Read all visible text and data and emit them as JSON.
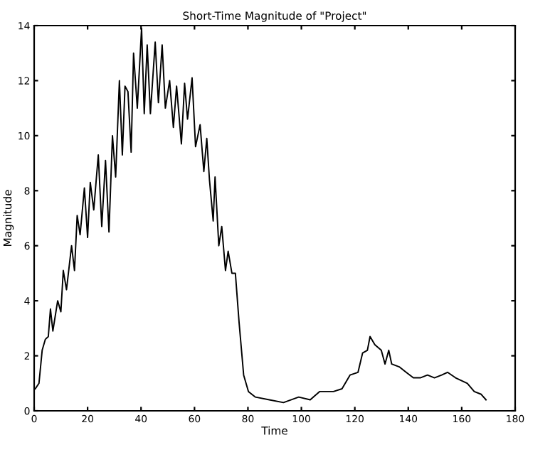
{
  "chart_data": {
    "type": "line",
    "title": "Short-Time Magnitude of \"Project\"",
    "xlabel": "Time",
    "ylabel": "Magnitude",
    "x": [
      0.4,
      1.8,
      3,
      4.2,
      5.3,
      6.1,
      7,
      8.8,
      10,
      10.9,
      12.1,
      14,
      15.1,
      16.1,
      17.2,
      18.8,
      20,
      21,
      22.3,
      24,
      25.3,
      26.7,
      28,
      29.3,
      30.5,
      31.9,
      33,
      34,
      35.1,
      36.3,
      37.2,
      38.6,
      40.2,
      41.2,
      42.3,
      43.5,
      45.3,
      46.5,
      47.9,
      49.1,
      50.7,
      52.1,
      53.3,
      55.1,
      56.3,
      57.4,
      59.1,
      60.4,
      62.1,
      63.5,
      64.6,
      65.6,
      67,
      67.7,
      69.1,
      70.2,
      71.6,
      72.6,
      74,
      75.3,
      76.7,
      78.4,
      80.2,
      82.8,
      88,
      93.3,
      99,
      103.3,
      106.8,
      112,
      115.2,
      118.2,
      121.2,
      122.9,
      124.7,
      125.7,
      127.5,
      129.9,
      131.3,
      132.7,
      133.8,
      136.6,
      139.2,
      141.9,
      144.5,
      147.2,
      149.8,
      152.5,
      154.7,
      157.7,
      162.1,
      164.7,
      167.3,
      169.1
    ],
    "series": [
      {
        "color": "#000000",
        "values": [
          0.8,
          1.0,
          2.2,
          2.6,
          2.7,
          3.7,
          2.9,
          4.0,
          3.6,
          5.1,
          4.4,
          6.0,
          5.1,
          7.1,
          6.4,
          8.1,
          6.3,
          8.3,
          7.3,
          9.3,
          6.7,
          9.1,
          6.5,
          10.0,
          8.5,
          12.0,
          9.3,
          11.8,
          11.6,
          9.4,
          13.0,
          11.0,
          13.9,
          10.8,
          13.3,
          10.8,
          13.4,
          11.2,
          13.3,
          11.0,
          12.0,
          10.3,
          11.8,
          9.7,
          11.9,
          10.6,
          12.1,
          9.6,
          10.4,
          8.7,
          9.9,
          8.4,
          6.9,
          8.5,
          6.0,
          6.7,
          5.1,
          5.8,
          5.0,
          5.0,
          3.2,
          1.3,
          0.7,
          0.5,
          0.4,
          0.3,
          0.5,
          0.4,
          0.7,
          0.7,
          0.8,
          1.3,
          1.4,
          2.1,
          2.2,
          2.7,
          2.4,
          2.2,
          1.7,
          2.2,
          1.7,
          1.6,
          1.4,
          1.2,
          1.2,
          1.3,
          1.2,
          1.3,
          1.4,
          1.2,
          1.0,
          0.7,
          0.6,
          0.4
        ]
      }
    ],
    "xlim": [
      0,
      180
    ],
    "ylim": [
      0,
      14
    ],
    "xticks": [
      0,
      20,
      40,
      60,
      80,
      100,
      120,
      140,
      160,
      180
    ],
    "yticks": [
      0,
      2,
      4,
      6,
      8,
      10,
      12,
      14
    ],
    "grid": false,
    "legend": false,
    "marker": "none",
    "line_style": "solid"
  }
}
